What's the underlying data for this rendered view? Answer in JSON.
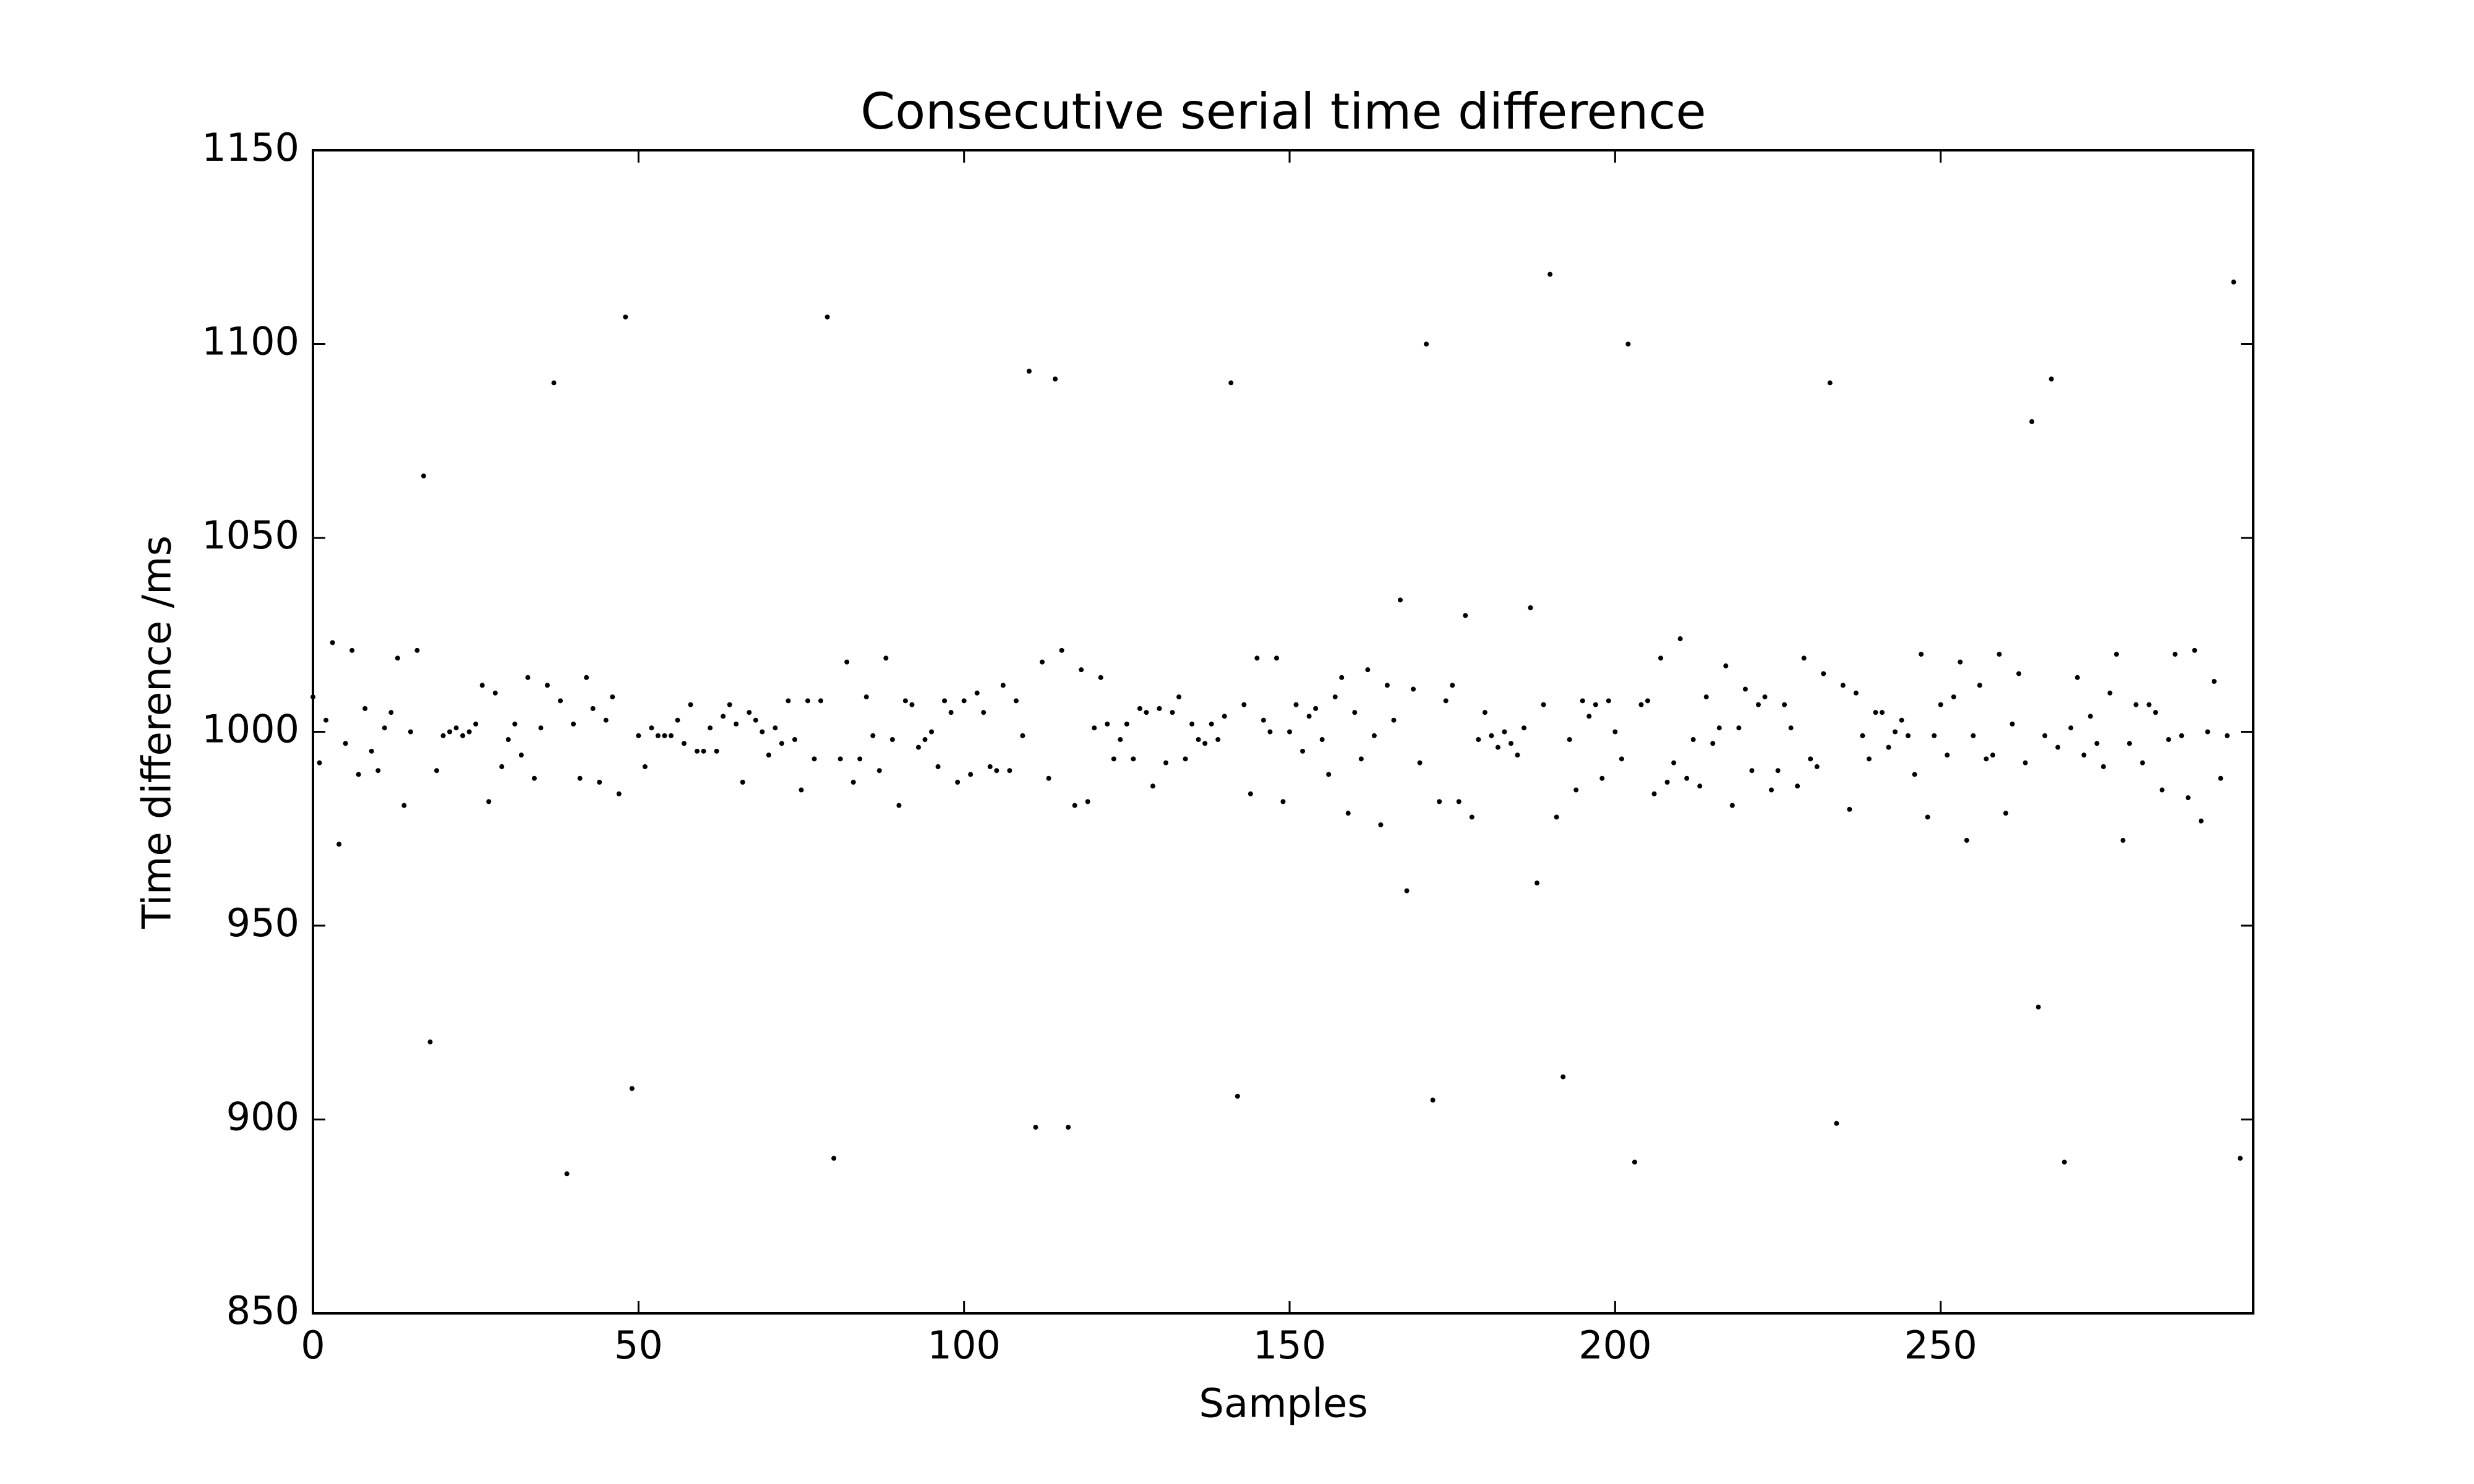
{
  "chart_data": {
    "type": "scatter",
    "title": "Consecutive serial time difference",
    "x_label": "Samples",
    "y_label": "Time difference /ms",
    "color": "#000000",
    "x": [
      0,
      1,
      2,
      3,
      4,
      5,
      6,
      7,
      8,
      9,
      10,
      11,
      12,
      13,
      14,
      15,
      16,
      17,
      18,
      19,
      20,
      21,
      22,
      23,
      24,
      25,
      26,
      27,
      28,
      29,
      30,
      31,
      32,
      33,
      34,
      35,
      36,
      37,
      38,
      39,
      40,
      41,
      42,
      43,
      44,
      45,
      46,
      47,
      48,
      49,
      50,
      51,
      52,
      53,
      54,
      55,
      56,
      57,
      58,
      59,
      60,
      61,
      62,
      63,
      64,
      65,
      66,
      67,
      68,
      69,
      70,
      71,
      72,
      73,
      74,
      75,
      76,
      77,
      78,
      79,
      80,
      81,
      82,
      83,
      84,
      85,
      86,
      87,
      88,
      89,
      90,
      91,
      92,
      93,
      94,
      95,
      96,
      97,
      98,
      99,
      100,
      101,
      102,
      103,
      104,
      105,
      106,
      107,
      108,
      109,
      110,
      111,
      112,
      113,
      114,
      115,
      116,
      117,
      118,
      119,
      120,
      121,
      122,
      123,
      124,
      125,
      126,
      127,
      128,
      129,
      130,
      131,
      132,
      133,
      134,
      135,
      136,
      137,
      138,
      139,
      140,
      141,
      142,
      143,
      144,
      145,
      146,
      147,
      148,
      149,
      150,
      151,
      152,
      153,
      154,
      155,
      156,
      157,
      158,
      159,
      160,
      161,
      162,
      163,
      164,
      165,
      166,
      167,
      168,
      169,
      170,
      171,
      172,
      173,
      174,
      175,
      176,
      177,
      178,
      179,
      180,
      181,
      182,
      183,
      184,
      185,
      186,
      187,
      188,
      189,
      190,
      191,
      192,
      193,
      194,
      195,
      196,
      197,
      198,
      199,
      200,
      201,
      202,
      203,
      204,
      205,
      206,
      207,
      208,
      209,
      210,
      211,
      212,
      213,
      214,
      215,
      216,
      217,
      218,
      219,
      220,
      221,
      222,
      223,
      224,
      225,
      226,
      227,
      228,
      229,
      230,
      231,
      232,
      233,
      234,
      235,
      236,
      237,
      238,
      239,
      240,
      241,
      242,
      243,
      244,
      245,
      246,
      247,
      248,
      249,
      250,
      251,
      252,
      253,
      254,
      255,
      256,
      257,
      258,
      259,
      260,
      261,
      262,
      263,
      264,
      265,
      266,
      267,
      268,
      269,
      270,
      271,
      272,
      273,
      274,
      275,
      276,
      277,
      278,
      279,
      280,
      281,
      282,
      283,
      284,
      285,
      286,
      287,
      288,
      289,
      290,
      291,
      292,
      293,
      294,
      295,
      296
    ],
    "y": [
      1009,
      992,
      1003,
      1023,
      971,
      997,
      1021,
      989,
      1006,
      995,
      990,
      1001,
      1005,
      1019,
      981,
      1000,
      1021,
      1066,
      920,
      990,
      999,
      1000,
      1001,
      999,
      1000,
      1002,
      1012,
      982,
      1010,
      991,
      998,
      1002,
      994,
      1014,
      988,
      1001,
      1012,
      1090,
      1008,
      886,
      1002,
      988,
      1014,
      1006,
      987,
      1003,
      1009,
      984,
      1107,
      908,
      999,
      991,
      1001,
      999,
      999,
      999,
      1003,
      997,
      1007,
      995,
      995,
      1001,
      995,
      1004,
      1007,
      1002,
      987,
      1005,
      1003,
      1000,
      994,
      1001,
      997,
      1008,
      998,
      985,
      1008,
      993,
      1008,
      1107,
      890,
      993,
      1018,
      987,
      993,
      1009,
      999,
      990,
      1019,
      998,
      981,
      1008,
      1007,
      996,
      998,
      1000,
      991,
      1008,
      1005,
      987,
      1008,
      989,
      1010,
      1005,
      991,
      990,
      1012,
      990,
      1008,
      999,
      1093,
      898,
      1018,
      988,
      1091,
      1021,
      898,
      981,
      1016,
      982,
      1001,
      1014,
      1002,
      993,
      998,
      1002,
      993,
      1006,
      1005,
      986,
      1006,
      992,
      1005,
      1009,
      993,
      1002,
      998,
      997,
      1002,
      998,
      1004,
      1090,
      906,
      1007,
      984,
      1019,
      1003,
      1000,
      1019,
      982,
      1000,
      1007,
      995,
      1004,
      1006,
      998,
      989,
      1009,
      1014,
      979,
      1005,
      993,
      1016,
      999,
      976,
      1012,
      1003,
      1034,
      959,
      1011,
      992,
      1100,
      905,
      982,
      1008,
      1012,
      982,
      1030,
      978,
      998,
      1005,
      999,
      996,
      1000,
      997,
      994,
      1001,
      1032,
      961,
      1007,
      1118,
      978,
      911,
      998,
      985,
      1008,
      1004,
      1007,
      988,
      1008,
      1000,
      993,
      1100,
      889,
      1007,
      1008,
      984,
      1019,
      987,
      992,
      1024,
      988,
      998,
      986,
      1009,
      997,
      1001,
      1017,
      981,
      1001,
      1011,
      990,
      1007,
      1009,
      985,
      990,
      1007,
      1001,
      986,
      1019,
      993,
      991,
      1015,
      1090,
      899,
      1012,
      980,
      1010,
      999,
      993,
      1005,
      1005,
      996,
      1000,
      1003,
      999,
      989,
      1020,
      978,
      999,
      1007,
      994,
      1009,
      1018,
      972,
      999,
      1012,
      993,
      994,
      1020,
      979,
      1002,
      1015,
      992,
      1080,
      929,
      999,
      1091,
      996,
      889,
      1001,
      1014,
      994,
      1004,
      997,
      991,
      1010,
      1020,
      972,
      997,
      1007,
      992,
      1007,
      1005,
      985,
      998,
      1020,
      999,
      983,
      1021,
      977,
      1000,
      1013,
      988,
      999,
      1116,
      890
    ],
    "xlim": [
      0,
      298
    ],
    "xticks": [
      0,
      50,
      100,
      150,
      200,
      250
    ],
    "ylim": [
      850,
      1150
    ],
    "yticks": [
      850,
      900,
      950,
      1000,
      1050,
      1100,
      1150
    ]
  }
}
